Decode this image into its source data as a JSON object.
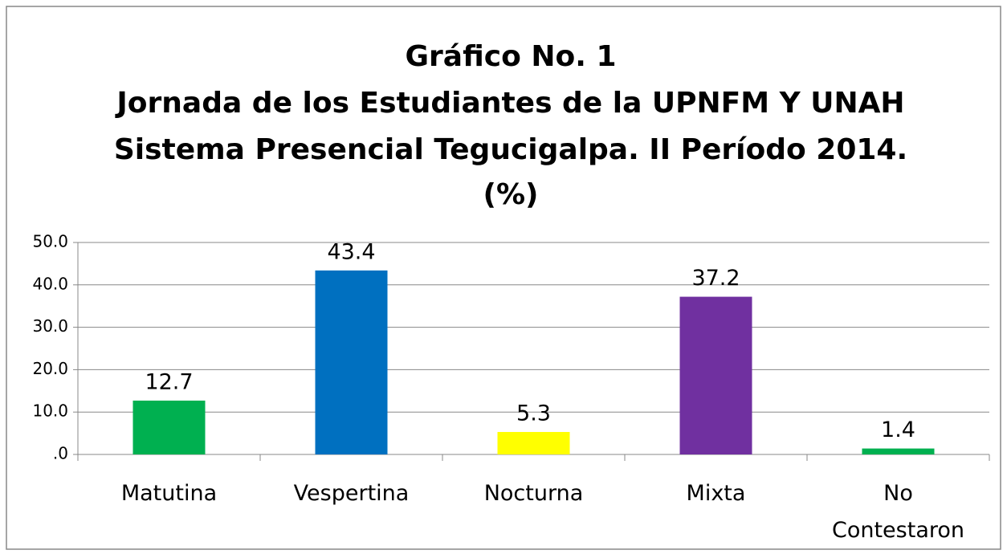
{
  "chart_data": {
    "type": "bar",
    "title": [
      "Gráfico No. 1",
      "Jornada de los Estudiantes de la UPNFM Y UNAH",
      "Sistema Presencial Tegucigalpa. II Período 2014.",
      "(%)"
    ],
    "categories": [
      "Matutina",
      "Vespertina",
      "Nocturna",
      "Mixta",
      "No Contestaron"
    ],
    "values": [
      12.7,
      43.4,
      5.3,
      37.2,
      1.4
    ],
    "colors": [
      "#00b050",
      "#0070c0",
      "#ffff00",
      "#7030a0",
      "#00b050"
    ],
    "ylim": [
      0,
      50
    ],
    "yticks": [
      {
        "value": 0,
        "label": ".0"
      },
      {
        "value": 10,
        "label": "10.0"
      },
      {
        "value": 20,
        "label": "20.0"
      },
      {
        "value": 30,
        "label": "30.0"
      },
      {
        "value": 40,
        "label": "40.0"
      },
      {
        "value": 50,
        "label": "50.0"
      }
    ],
    "grid": true
  }
}
